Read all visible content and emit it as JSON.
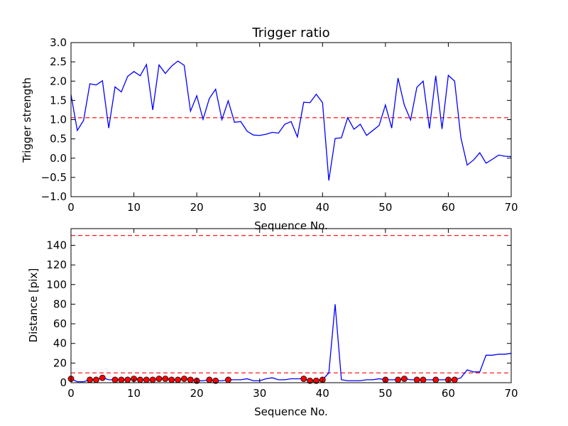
{
  "chart_data": [
    {
      "type": "line",
      "title": "Trigger ratio",
      "xlabel": "Sequence No.",
      "ylabel": "Trigger strength",
      "xlim": [
        0,
        70
      ],
      "ylim": [
        -1.0,
        3.0
      ],
      "xticks": [
        "0",
        "10",
        "20",
        "30",
        "40",
        "50",
        "60",
        "70"
      ],
      "yticks": [
        "−1.0",
        "−0.5",
        "0.0",
        "0.5",
        "1.0",
        "1.5",
        "2.0",
        "2.5",
        "3.0"
      ],
      "series": [
        {
          "color": "#0000ff",
          "x": [
            0,
            1,
            2,
            3,
            4,
            5,
            6,
            7,
            8,
            9,
            10,
            11,
            12,
            13,
            14,
            15,
            16,
            17,
            18,
            19,
            20,
            21,
            22,
            23,
            24,
            25,
            26,
            27,
            28,
            29,
            30,
            31,
            32,
            33,
            34,
            35,
            36,
            37,
            38,
            39,
            40,
            41,
            42,
            43,
            44,
            45,
            46,
            47,
            48,
            49,
            50,
            51,
            52,
            53,
            54,
            55,
            56,
            57,
            58,
            59,
            60,
            61,
            62,
            63,
            64,
            65,
            66,
            67,
            68,
            69,
            70
          ],
          "values": [
            1.65,
            0.72,
            0.98,
            1.93,
            1.9,
            2.01,
            0.78,
            1.85,
            1.72,
            2.12,
            2.25,
            2.14,
            2.43,
            1.25,
            2.42,
            2.2,
            2.39,
            2.52,
            2.41,
            1.22,
            1.62,
            1.01,
            1.55,
            1.79,
            1.0,
            1.49,
            0.93,
            0.95,
            0.7,
            0.6,
            0.59,
            0.62,
            0.67,
            0.65,
            0.88,
            0.95,
            0.55,
            1.45,
            1.44,
            1.66,
            1.44,
            -0.58,
            0.51,
            0.53,
            1.05,
            0.75,
            0.88,
            0.59,
            0.72,
            0.85,
            1.38,
            0.78,
            2.08,
            1.38,
            0.99,
            1.84,
            2.0,
            0.77,
            2.14,
            0.76,
            2.15,
            2.0,
            0.53,
            -0.18,
            -0.05,
            0.14,
            -0.13,
            -0.03,
            0.08,
            0.05,
            0.04
          ]
        }
      ],
      "reference_lines": [
        {
          "y": 1.05,
          "color": "#ff0000",
          "style": "dashed"
        }
      ]
    },
    {
      "type": "line",
      "title": "",
      "xlabel": "Sequence No.",
      "ylabel": "Distance [pix]",
      "xlim": [
        0,
        70
      ],
      "ylim": [
        0,
        157
      ],
      "xticks": [
        "0",
        "10",
        "20",
        "30",
        "40",
        "50",
        "60",
        "70"
      ],
      "yticks": [
        "0",
        "20",
        "40",
        "60",
        "80",
        "100",
        "120",
        "140"
      ],
      "series": [
        {
          "color": "#0000ff",
          "x": [
            0,
            1,
            2,
            3,
            4,
            5,
            6,
            7,
            8,
            9,
            10,
            11,
            12,
            13,
            14,
            15,
            16,
            17,
            18,
            19,
            20,
            21,
            22,
            23,
            24,
            25,
            26,
            27,
            28,
            29,
            30,
            31,
            32,
            33,
            34,
            35,
            36,
            37,
            38,
            39,
            40,
            41,
            42,
            43,
            44,
            45,
            46,
            47,
            48,
            49,
            50,
            51,
            52,
            53,
            54,
            55,
            56,
            57,
            58,
            59,
            60,
            61,
            62,
            63,
            64,
            65,
            66,
            67,
            68,
            69,
            70
          ],
          "values": [
            4,
            1,
            1,
            3,
            3,
            5,
            3,
            3,
            3,
            3,
            4,
            3,
            3,
            3,
            4,
            4,
            3,
            3,
            4,
            3,
            2,
            2,
            3,
            2,
            2,
            3,
            3,
            3,
            4,
            2,
            2,
            4,
            5,
            3,
            3,
            4,
            4,
            4,
            2,
            2,
            3,
            10,
            80,
            3,
            2,
            2,
            2,
            3,
            3,
            4,
            3,
            3,
            3,
            4,
            3,
            3,
            3,
            3,
            3,
            3,
            3,
            3,
            5,
            13,
            11,
            11,
            28,
            28,
            29,
            29,
            30
          ]
        },
        {
          "name": "",
          "marker": "circle",
          "color": "#ff0000",
          "x": [
            0,
            3,
            4,
            5,
            7,
            8,
            9,
            10,
            11,
            12,
            13,
            14,
            15,
            16,
            17,
            18,
            19,
            20,
            22,
            23,
            25,
            37,
            38,
            39,
            40,
            50,
            52,
            53,
            55,
            56,
            58,
            60,
            61
          ],
          "values": [
            4,
            3,
            3,
            5,
            3,
            3,
            3,
            4,
            3,
            3,
            3,
            4,
            4,
            3,
            3,
            4,
            3,
            2,
            3,
            2,
            3,
            4,
            2,
            2,
            3,
            3,
            3,
            4,
            3,
            3,
            3,
            3,
            3
          ]
        }
      ],
      "reference_lines": [
        {
          "y": 150,
          "color": "#ff0000",
          "style": "dashed"
        },
        {
          "y": 10,
          "color": "#ff0000",
          "style": "dashed"
        }
      ]
    }
  ]
}
